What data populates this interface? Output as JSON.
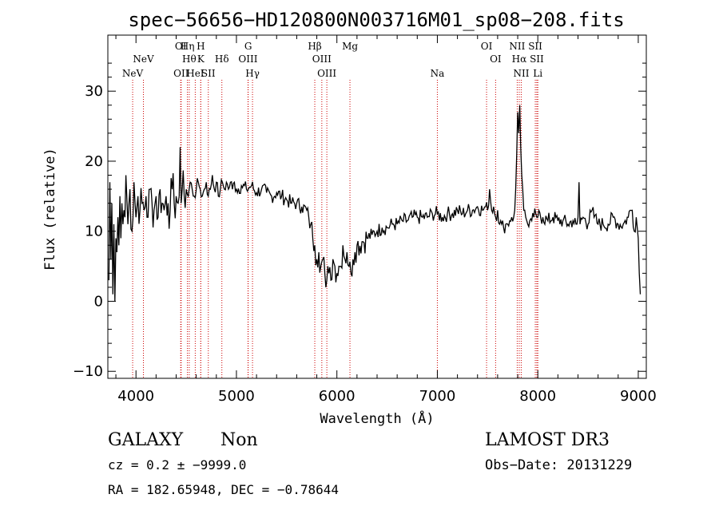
{
  "chart_data": {
    "type": "line",
    "title": "spec−56656−HD120800N003716M01_sp08−208.fits",
    "xlabel": "Wavelength (Å)",
    "ylabel": "Flux (relative)",
    "xlim": [
      3720,
      9080
    ],
    "ylim": [
      -11,
      38
    ],
    "xticks": [
      4000,
      5000,
      6000,
      7000,
      8000,
      9000
    ],
    "yticks": [
      -10,
      0,
      10,
      20,
      30
    ],
    "xtick_labels": [
      "4000",
      "5000",
      "6000",
      "7000",
      "8000",
      "9000"
    ],
    "ytick_labels": [
      "−10",
      "0",
      "10",
      "20",
      "30"
    ],
    "grid": false,
    "series": [
      {
        "name": "",
        "color": "#000000",
        "x": [
          3730,
          3740,
          3750,
          3760,
          3770,
          3780,
          3790,
          3800,
          3810,
          3820,
          3830,
          3840,
          3850,
          3860,
          3870,
          3880,
          3890,
          3900,
          3920,
          3940,
          3960,
          3980,
          4000,
          4020,
          4040,
          4060,
          4080,
          4100,
          4120,
          4140,
          4160,
          4180,
          4200,
          4220,
          4240,
          4260,
          4280,
          4300,
          4320,
          4340,
          4360,
          4380,
          4400,
          4420,
          4430,
          4440,
          4450,
          4460,
          4480,
          4500,
          4520,
          4540,
          4560,
          4580,
          4600,
          4620,
          4640,
          4660,
          4680,
          4700,
          4720,
          4740,
          4760,
          4780,
          4800,
          4820,
          4840,
          4860,
          4880,
          4900,
          4920,
          4940,
          4960,
          4980,
          5000,
          5050,
          5100,
          5150,
          5200,
          5250,
          5300,
          5350,
          5400,
          5450,
          5500,
          5550,
          5600,
          5650,
          5700,
          5720,
          5740,
          5760,
          5780,
          5800,
          5820,
          5840,
          5860,
          5880,
          5890,
          5900,
          5910,
          5920,
          5940,
          5960,
          5980,
          6000,
          6020,
          6040,
          6060,
          6080,
          6100,
          6120,
          6140,
          6160,
          6180,
          6200,
          6250,
          6300,
          6350,
          6400,
          6450,
          6500,
          6550,
          6600,
          6650,
          6700,
          6750,
          6800,
          6850,
          6900,
          6950,
          7000,
          7050,
          7100,
          7150,
          7200,
          7250,
          7300,
          7350,
          7400,
          7450,
          7480,
          7500,
          7520,
          7540,
          7560,
          7580,
          7600,
          7620,
          7640,
          7660,
          7680,
          7700,
          7720,
          7740,
          7760,
          7770,
          7780,
          7790,
          7800,
          7810,
          7820,
          7830,
          7840,
          7850,
          7860,
          7880,
          7900,
          7920,
          7940,
          7960,
          7980,
          8000,
          8050,
          8100,
          8150,
          8200,
          8250,
          8300,
          8350,
          8380,
          8390,
          8400,
          8410,
          8420,
          8450,
          8500,
          8520,
          8540,
          8560,
          8600,
          8650,
          8700,
          8750,
          8800,
          8850,
          8900,
          8920,
          8940,
          8960,
          8980,
          9000,
          9010,
          9020
        ],
        "y": [
          3,
          17,
          6,
          14,
          1,
          11,
          0,
          9,
          7,
          12,
          8,
          15,
          9,
          14,
          11,
          13,
          12,
          18,
          11,
          16,
          10,
          17,
          12,
          15,
          13,
          14,
          13,
          15,
          12,
          16,
          14,
          13,
          15,
          12,
          16,
          14,
          13,
          15,
          14,
          13,
          16,
          14,
          15,
          14,
          15,
          22,
          14,
          16,
          15,
          16,
          15,
          17,
          16,
          15,
          16,
          17,
          16,
          15,
          16,
          17,
          15,
          16,
          18,
          16,
          17,
          15,
          16,
          17,
          16,
          17,
          16,
          17,
          16,
          17,
          16,
          16.5,
          16,
          16.5,
          15.5,
          16,
          15.5,
          15,
          15.5,
          15,
          14.5,
          14,
          14,
          13.5,
          13,
          12,
          11,
          9,
          8,
          6,
          7,
          5,
          6,
          4,
          2,
          3,
          5,
          4,
          3,
          6,
          5,
          4,
          5,
          5,
          8,
          6,
          7,
          5,
          4,
          6,
          7,
          8,
          8.5,
          9,
          9.5,
          10,
          10.5,
          10.5,
          11,
          11,
          11.5,
          11.5,
          12,
          12,
          12,
          12,
          12.5,
          12.5,
          12,
          12.5,
          12.5,
          13,
          12.5,
          13,
          13,
          13.5,
          13,
          13.5,
          13,
          16,
          13,
          13.5,
          12,
          13,
          11,
          11,
          10.5,
          11,
          11,
          11.5,
          12,
          12,
          13,
          16,
          21,
          27,
          24,
          28,
          22,
          18,
          16,
          13,
          12,
          11,
          11.5,
          11.5,
          12,
          12.5,
          12,
          12,
          11.5,
          12,
          11.5,
          11.5,
          11,
          11.5,
          11,
          11,
          12,
          17,
          11,
          12,
          11,
          13,
          13,
          12,
          11,
          11,
          11,
          12,
          11,
          11,
          12,
          13,
          13,
          10,
          12,
          9,
          4,
          1
        ]
      }
    ],
    "emission_lines": [
      {
        "label": "NeV",
        "x": 3967.0,
        "row": 3
      },
      {
        "label": "NeV",
        "x": 4074.0,
        "row": 2
      },
      {
        "label": "OI",
        "x": 4445.0,
        "row": 1
      },
      {
        "label": "OII",
        "x": 4450.0,
        "row": 3
      },
      {
        "label": "Hη",
        "x": 4512.0,
        "row": 1
      },
      {
        "label": "Hθ",
        "x": 4530.0,
        "row": 2
      },
      {
        "label": "HeI",
        "x": 4590.0,
        "row": 3
      },
      {
        "label": "H",
        "x": 4645.0,
        "row": 1
      },
      {
        "label": "K",
        "x": 4645.0,
        "row": 2
      },
      {
        "label": "SII",
        "x": 4720.0,
        "row": 3
      },
      {
        "label": "Hδ",
        "x": 4855.0,
        "row": 2
      },
      {
        "label": "G",
        "x": 5117.0,
        "row": 1
      },
      {
        "label": "OIII",
        "x": 5115.0,
        "row": 2
      },
      {
        "label": "Hγ",
        "x": 5160.0,
        "row": 3
      },
      {
        "label": "Hβ",
        "x": 5780.0,
        "row": 1
      },
      {
        "label": "OIII",
        "x": 5850.0,
        "row": 2
      },
      {
        "label": "OIII",
        "x": 5900.0,
        "row": 3
      },
      {
        "label": "Mg",
        "x": 6130.0,
        "row": 1
      },
      {
        "label": "Na",
        "x": 7000.0,
        "row": 3
      },
      {
        "label": "OI",
        "x": 7490.0,
        "row": 1
      },
      {
        "label": "OI",
        "x": 7580.0,
        "row": 2
      },
      {
        "label": "NII",
        "x": 7795.0,
        "row": 1
      },
      {
        "label": "Hα",
        "x": 7815.0,
        "row": 2
      },
      {
        "label": "NII",
        "x": 7835.0,
        "row": 3
      },
      {
        "label": "SII",
        "x": 7975.0,
        "row": 1
      },
      {
        "label": "SII",
        "x": 7990.0,
        "row": 2
      },
      {
        "label": "Li",
        "x": 8000.0,
        "row": 3
      }
    ],
    "line_marker_color": "#cc0000"
  },
  "info": {
    "object_class": "GALAXY",
    "subclass": "Non",
    "survey": "LAMOST DR3",
    "cz_line": "cz = 0.2 ± −9999.0",
    "obs_date_line": "Obs−Date: 20131229",
    "radec_line": "RA = 182.65948, DEC =  −0.78644"
  }
}
